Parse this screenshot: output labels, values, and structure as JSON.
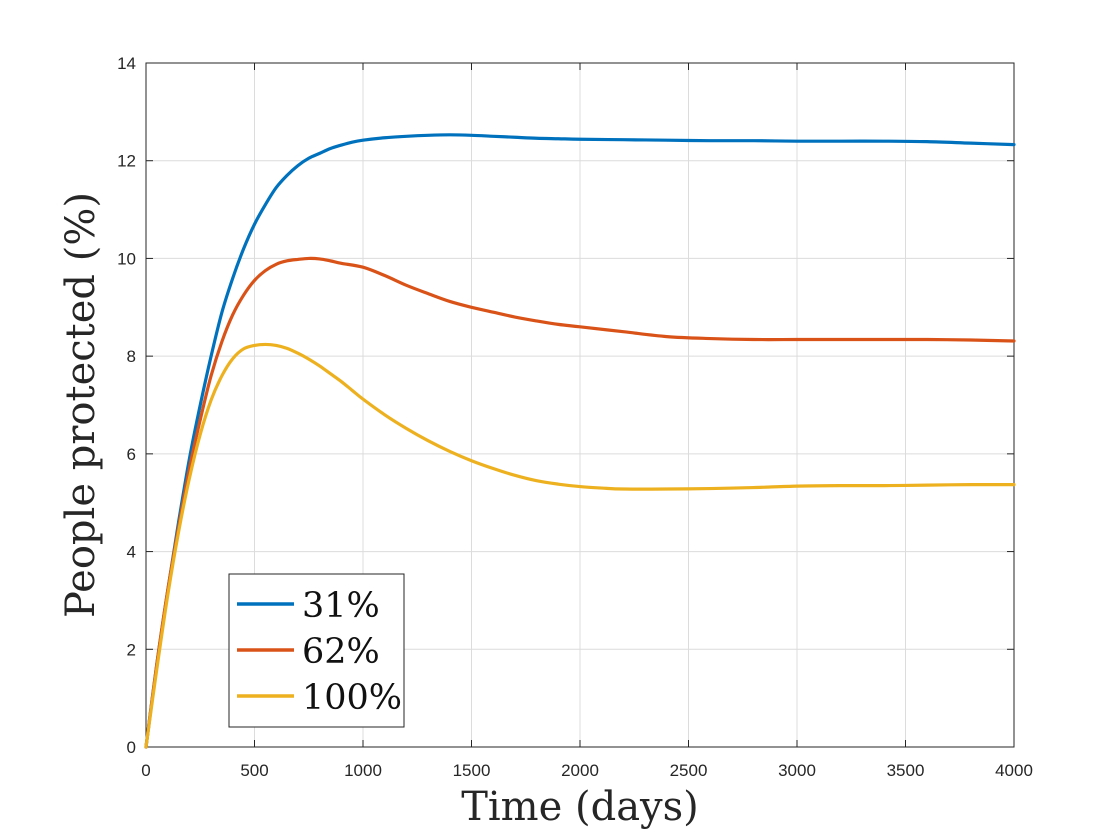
{
  "chart_data": {
    "type": "line",
    "xlabel": "Time (days)",
    "ylabel": "People protected (%)",
    "xlim": [
      0,
      4000
    ],
    "ylim": [
      0,
      14
    ],
    "xticks": [
      "0",
      "500",
      "1000",
      "1500",
      "2000",
      "2500",
      "3000",
      "3500",
      "4000"
    ],
    "yticks": [
      "0",
      "2",
      "4",
      "6",
      "8",
      "10",
      "12",
      "14"
    ],
    "grid": true,
    "legend_position": "bottom-left",
    "series": [
      {
        "name": "31%",
        "color": "#0072BD",
        "x": [
          0,
          50,
          100,
          150,
          200,
          250,
          300,
          350,
          400,
          450,
          500,
          550,
          600,
          650,
          700,
          750,
          800,
          850,
          900,
          950,
          1000,
          1100,
          1200,
          1300,
          1400,
          1500,
          1600,
          1700,
          1800,
          1900,
          2000,
          2200,
          2400,
          2600,
          2800,
          3000,
          3200,
          3400,
          3600,
          3800,
          4000
        ],
        "y": [
          0,
          1.7,
          3.2,
          4.6,
          5.9,
          7.0,
          8.0,
          8.9,
          9.6,
          10.2,
          10.7,
          11.1,
          11.45,
          11.7,
          11.9,
          12.05,
          12.15,
          12.25,
          12.32,
          12.38,
          12.42,
          12.47,
          12.5,
          12.52,
          12.53,
          12.52,
          12.5,
          12.48,
          12.46,
          12.45,
          12.44,
          12.43,
          12.42,
          12.41,
          12.41,
          12.4,
          12.4,
          12.4,
          12.39,
          12.36,
          12.33
        ]
      },
      {
        "name": "62%",
        "color": "#D95319",
        "x": [
          0,
          50,
          100,
          150,
          200,
          250,
          300,
          350,
          400,
          450,
          500,
          550,
          600,
          650,
          700,
          750,
          800,
          850,
          900,
          1000,
          1100,
          1200,
          1300,
          1400,
          1500,
          1600,
          1700,
          1800,
          1900,
          2000,
          2200,
          2400,
          2600,
          2800,
          3000,
          3200,
          3400,
          3600,
          3800,
          4000
        ],
        "y": [
          0,
          1.7,
          3.2,
          4.5,
          5.7,
          6.7,
          7.6,
          8.3,
          8.85,
          9.25,
          9.55,
          9.75,
          9.88,
          9.95,
          9.98,
          10.0,
          9.99,
          9.95,
          9.9,
          9.82,
          9.65,
          9.45,
          9.28,
          9.12,
          9.0,
          8.9,
          8.8,
          8.72,
          8.65,
          8.6,
          8.5,
          8.4,
          8.36,
          8.34,
          8.34,
          8.34,
          8.34,
          8.34,
          8.33,
          8.31
        ]
      },
      {
        "name": "100%",
        "color": "#EDB120",
        "x": [
          0,
          50,
          100,
          150,
          200,
          250,
          300,
          350,
          400,
          450,
          500,
          550,
          600,
          650,
          700,
          750,
          800,
          850,
          900,
          950,
          1000,
          1100,
          1200,
          1300,
          1400,
          1500,
          1600,
          1700,
          1800,
          1900,
          2000,
          2100,
          2200,
          2400,
          2600,
          2800,
          3000,
          3200,
          3400,
          3600,
          3800,
          4000
        ],
        "y": [
          0,
          1.6,
          3.1,
          4.4,
          5.5,
          6.4,
          7.1,
          7.6,
          7.95,
          8.15,
          8.22,
          8.24,
          8.22,
          8.16,
          8.06,
          7.94,
          7.8,
          7.64,
          7.48,
          7.3,
          7.12,
          6.8,
          6.52,
          6.27,
          6.05,
          5.86,
          5.7,
          5.56,
          5.45,
          5.38,
          5.33,
          5.3,
          5.28,
          5.28,
          5.29,
          5.31,
          5.34,
          5.35,
          5.35,
          5.36,
          5.37,
          5.37
        ]
      }
    ]
  }
}
